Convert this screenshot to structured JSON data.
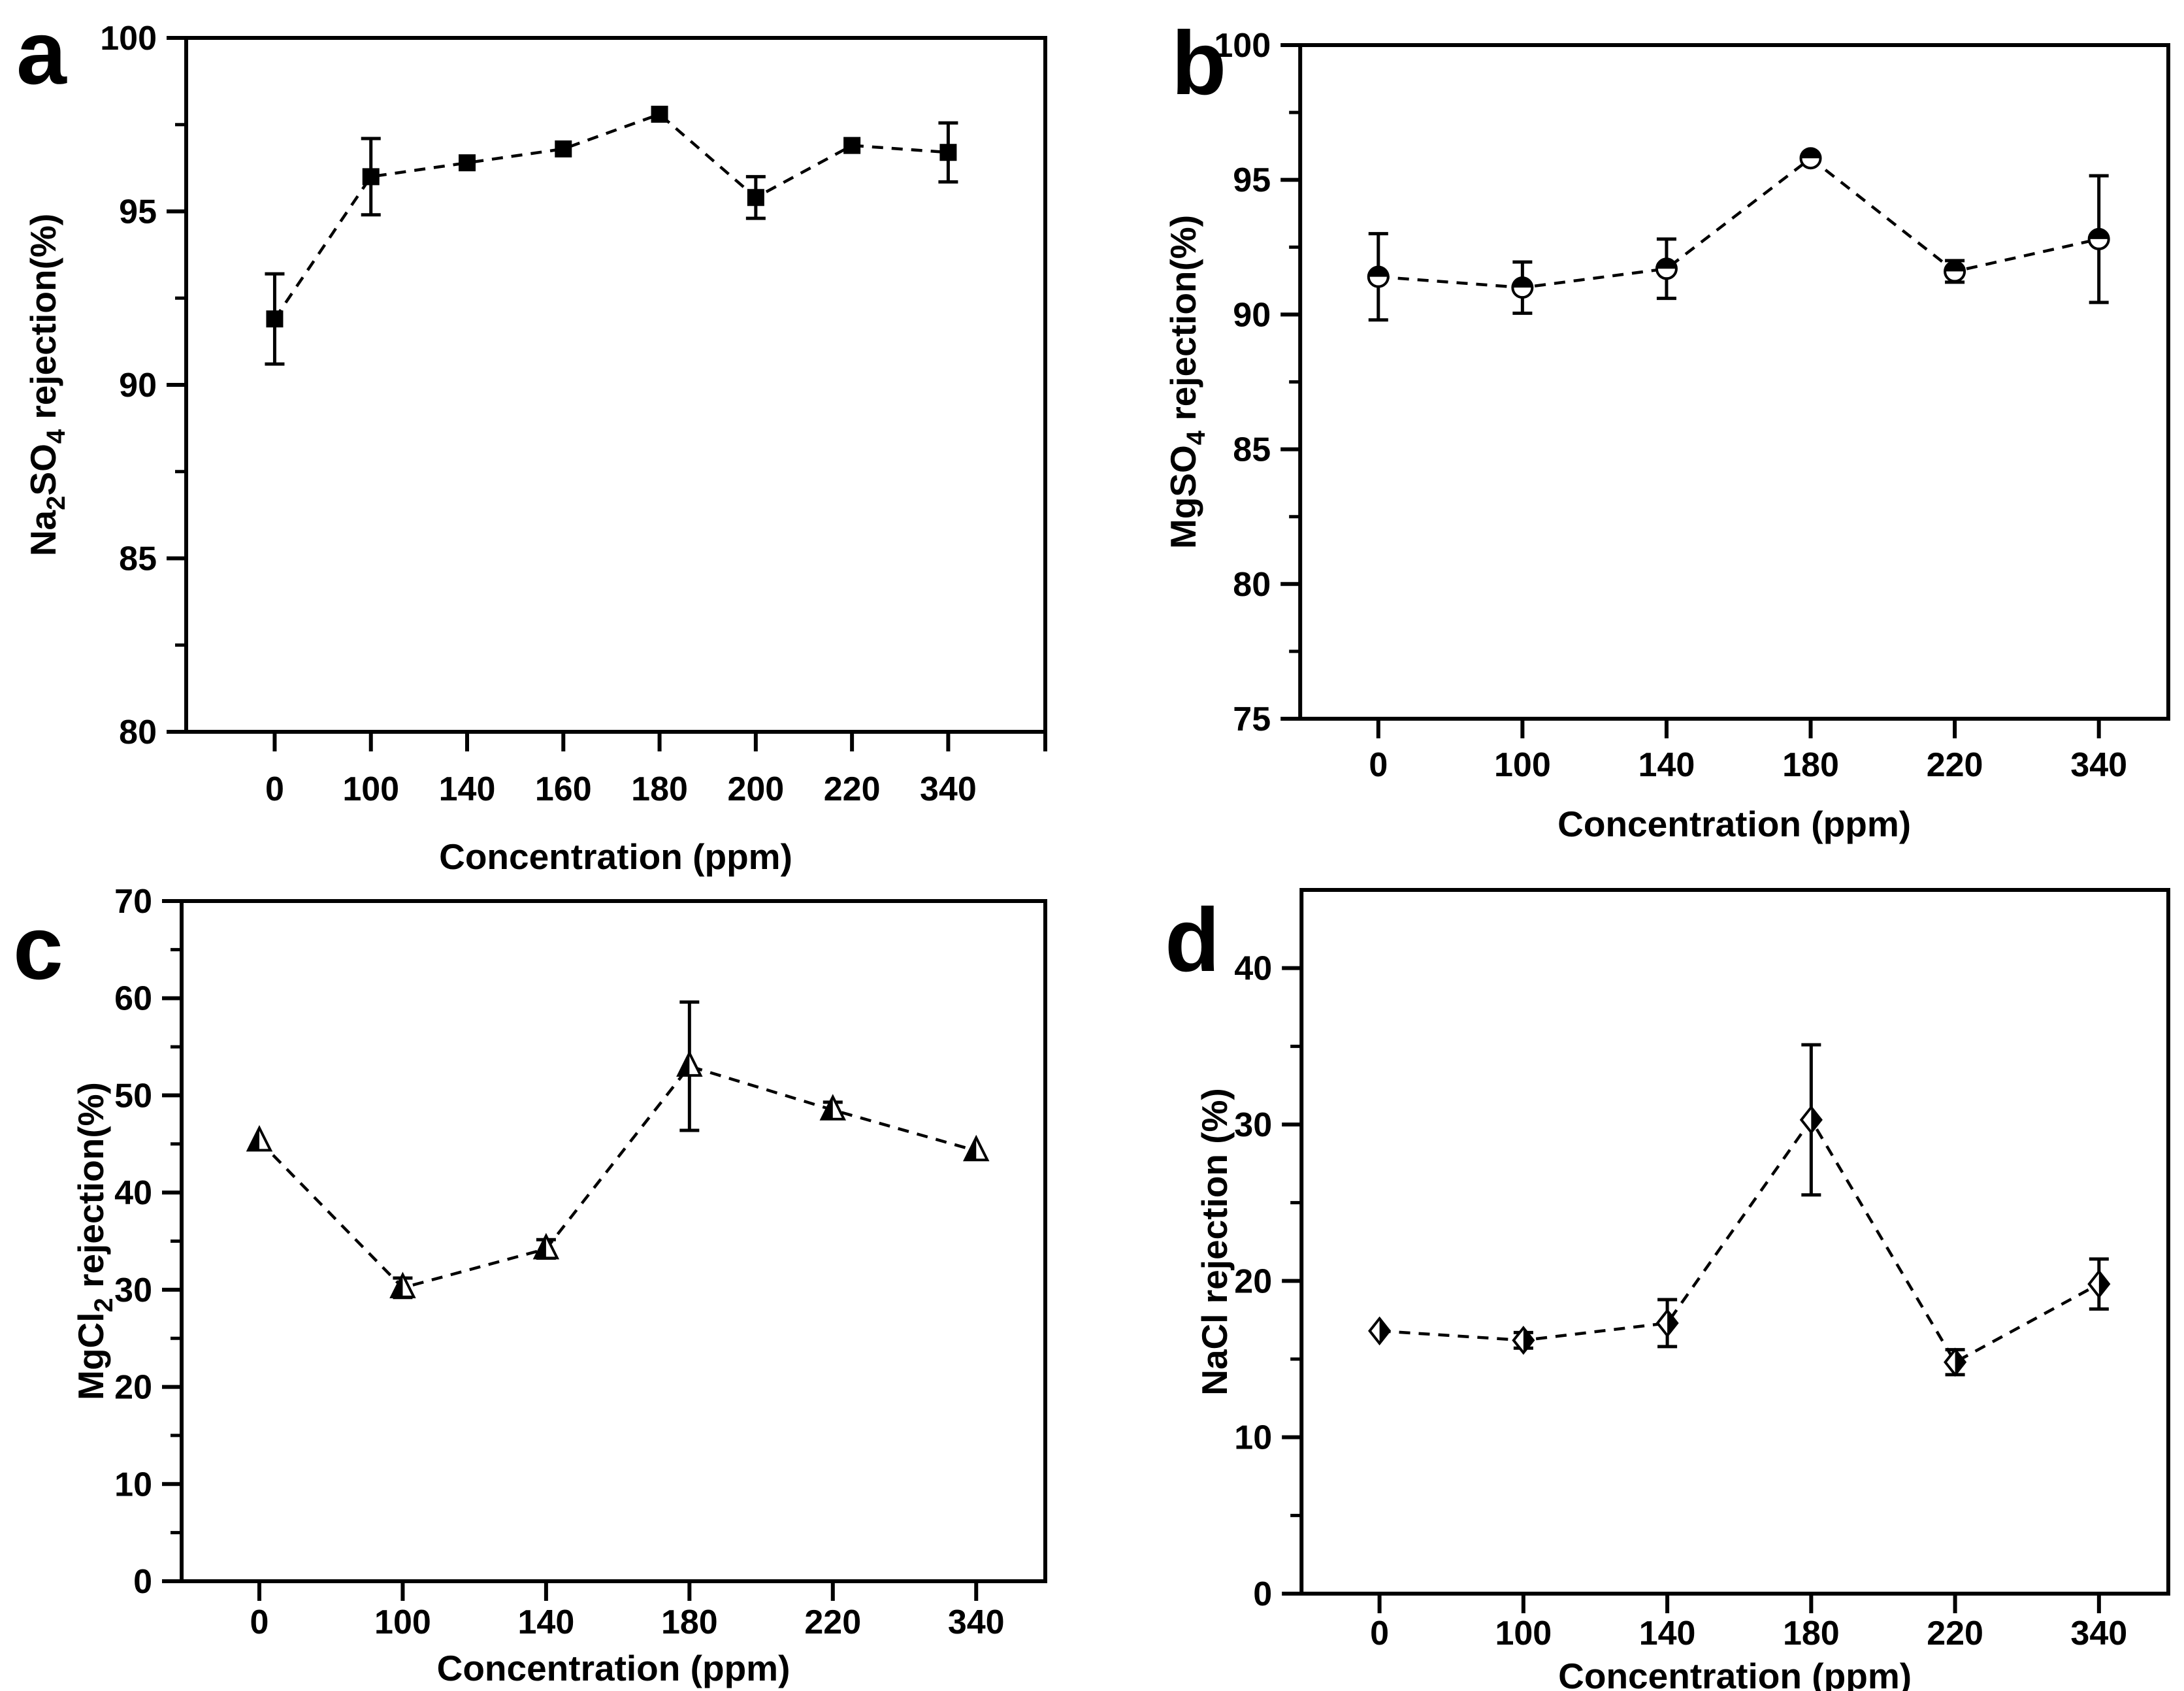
{
  "figure": {
    "background": "#ffffff",
    "axis_color": "#000000",
    "description": "Four-panel salt rejection line charts with error bars",
    "panel_count": 4
  },
  "chart_data": [
    {
      "type": "line",
      "panel_label": "a",
      "xlabel": "Concentration (ppm)",
      "ylabel": "Na2SO4 rejection(%)",
      "ylabel_segments": [
        {
          "t": "Na"
        },
        {
          "t": "2",
          "sub": true
        },
        {
          "t": "SO"
        },
        {
          "t": "4",
          "sub": true
        },
        {
          "t": " rejection(%)"
        }
      ],
      "categories": [
        "0",
        "100",
        "140",
        "160",
        "180",
        "200",
        "220",
        "340"
      ],
      "values": [
        91.9,
        96.0,
        96.4,
        96.8,
        97.8,
        95.4,
        96.9,
        96.7
      ],
      "errors": [
        1.3,
        1.1,
        null,
        null,
        null,
        0.6,
        null,
        0.85
      ],
      "ylim": [
        80,
        100
      ],
      "yticks": [
        80,
        85,
        90,
        95,
        100
      ],
      "yminor_step": 2.5,
      "marker": "filled-square",
      "line_style": "dashed",
      "color": "#000000",
      "grid": false,
      "legend": "none"
    },
    {
      "type": "line",
      "panel_label": "b",
      "xlabel": "Concentration (ppm)",
      "ylabel": "MgSO4 rejection(%)",
      "ylabel_segments": [
        {
          "t": "MgSO"
        },
        {
          "t": "4",
          "sub": true
        },
        {
          "t": " rejection(%)"
        }
      ],
      "categories": [
        "0",
        "100",
        "140",
        "180",
        "220",
        "340"
      ],
      "values": [
        91.4,
        91.0,
        91.7,
        95.8,
        91.6,
        92.8
      ],
      "errors": [
        1.6,
        0.95,
        1.1,
        null,
        0.4,
        2.35
      ],
      "ylim": [
        75,
        100
      ],
      "yticks": [
        75,
        80,
        85,
        90,
        95,
        100
      ],
      "yminor_step": 2.5,
      "marker": "half-filled-circle",
      "line_style": "dashed",
      "color": "#000000",
      "grid": false,
      "legend": "none"
    },
    {
      "type": "line",
      "panel_label": "c",
      "xlabel": "Concentration (ppm)",
      "ylabel": "MgCl2 rejection(%)",
      "ylabel_segments": [
        {
          "t": "MgCl"
        },
        {
          "t": "2",
          "sub": true
        },
        {
          "t": " rejection(%)"
        }
      ],
      "categories": [
        "0",
        "100",
        "140",
        "180",
        "220",
        "340"
      ],
      "values": [
        45.3,
        30.2,
        34.2,
        53.0,
        48.5,
        44.3
      ],
      "errors": [
        null,
        1.0,
        0.95,
        6.6,
        0.8,
        null
      ],
      "ylim": [
        0,
        70
      ],
      "yticks": [
        0,
        10,
        20,
        30,
        40,
        50,
        60,
        70
      ],
      "yminor_step": 5,
      "marker": "half-filled-triangle",
      "line_style": "dashed",
      "color": "#000000",
      "grid": false,
      "legend": "none"
    },
    {
      "type": "line",
      "panel_label": "d",
      "xlabel": "Concentration (ppm)",
      "ylabel": "NaCl rejection (%)",
      "ylabel_segments": [
        {
          "t": "NaCl rejection (%)"
        }
      ],
      "categories": [
        "0",
        "100",
        "140",
        "180",
        "220",
        "340"
      ],
      "values": [
        16.8,
        16.2,
        17.3,
        30.3,
        14.8,
        19.8
      ],
      "errors": [
        null,
        0.5,
        1.5,
        4.8,
        0.8,
        1.6
      ],
      "ylim": [
        0,
        45
      ],
      "yticks": [
        0,
        10,
        20,
        30,
        40
      ],
      "yminor_step": 5,
      "marker": "half-filled-diamond",
      "line_style": "dashed",
      "color": "#000000",
      "grid": false,
      "legend": "none"
    }
  ]
}
